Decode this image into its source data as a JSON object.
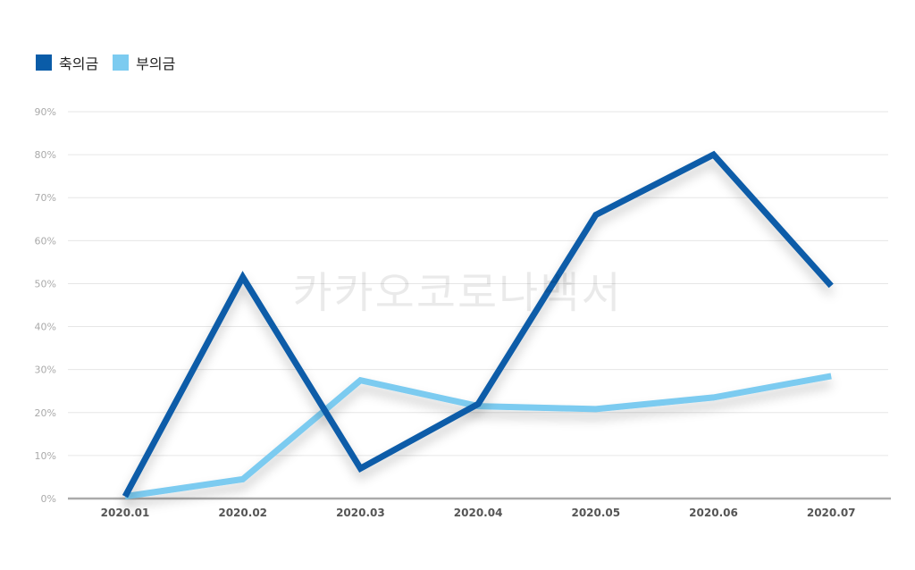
{
  "watermark": "카카오코로나백서",
  "colors": {
    "series1": "#0a5ca8",
    "series2": "#7ccbf0",
    "grid": "#e6e6e6",
    "axis": "#aaaaaa"
  },
  "chart_data": {
    "type": "line",
    "categories": [
      "2020.01",
      "2020.02",
      "2020.03",
      "2020.04",
      "2020.05",
      "2020.06",
      "2020.07"
    ],
    "series": [
      {
        "name": "축의금",
        "values": [
          0.5,
          51.5,
          7,
          22,
          66,
          80,
          49.5
        ]
      },
      {
        "name": "부의금",
        "values": [
          0.5,
          4.5,
          27.5,
          21.5,
          20.8,
          23.5,
          28.5
        ]
      }
    ],
    "yticks": [
      "0%",
      "10%",
      "20%",
      "30%",
      "40%",
      "50%",
      "60%",
      "70%",
      "80%",
      "90%"
    ],
    "ylim": [
      0,
      90
    ],
    "grid": true,
    "legend_position": "top-left"
  }
}
